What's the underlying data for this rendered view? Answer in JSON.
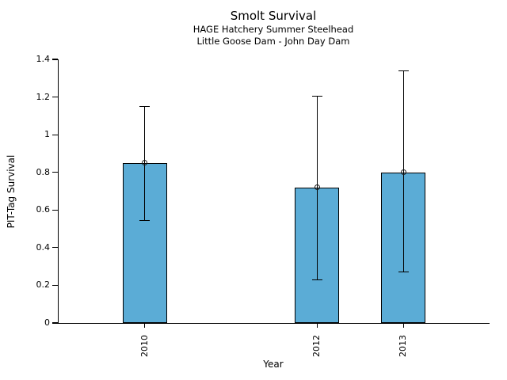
{
  "chart_data": {
    "type": "bar",
    "title": "Smolt Survival",
    "subtitles": [
      "HAGE Hatchery Summer Steelhead",
      "Little Goose Dam - John Day Dam"
    ],
    "xlabel": "Year",
    "ylabel": "PIT-Tag Survival",
    "categories": [
      "2010",
      "2012",
      "2013"
    ],
    "x_numeric": [
      2010,
      2012,
      2013
    ],
    "values": [
      0.85,
      0.72,
      0.8
    ],
    "error_low": [
      0.545,
      0.23,
      0.27
    ],
    "error_high": [
      1.15,
      1.205,
      1.34
    ],
    "point_markers": [
      0.85,
      0.72,
      0.8
    ],
    "yticks": [
      "0",
      "0.2",
      "0.4",
      "0.6",
      "0.8",
      "1",
      "1.2",
      "1.4"
    ],
    "ylim": [
      0,
      1.4
    ],
    "xlim": [
      2009,
      2014
    ],
    "grid": false,
    "legend": "none",
    "bar_color": "#5BACD6",
    "bar_edge_color": "#000000",
    "error_bar_color": "#000000",
    "marker_style": "open-circle"
  }
}
